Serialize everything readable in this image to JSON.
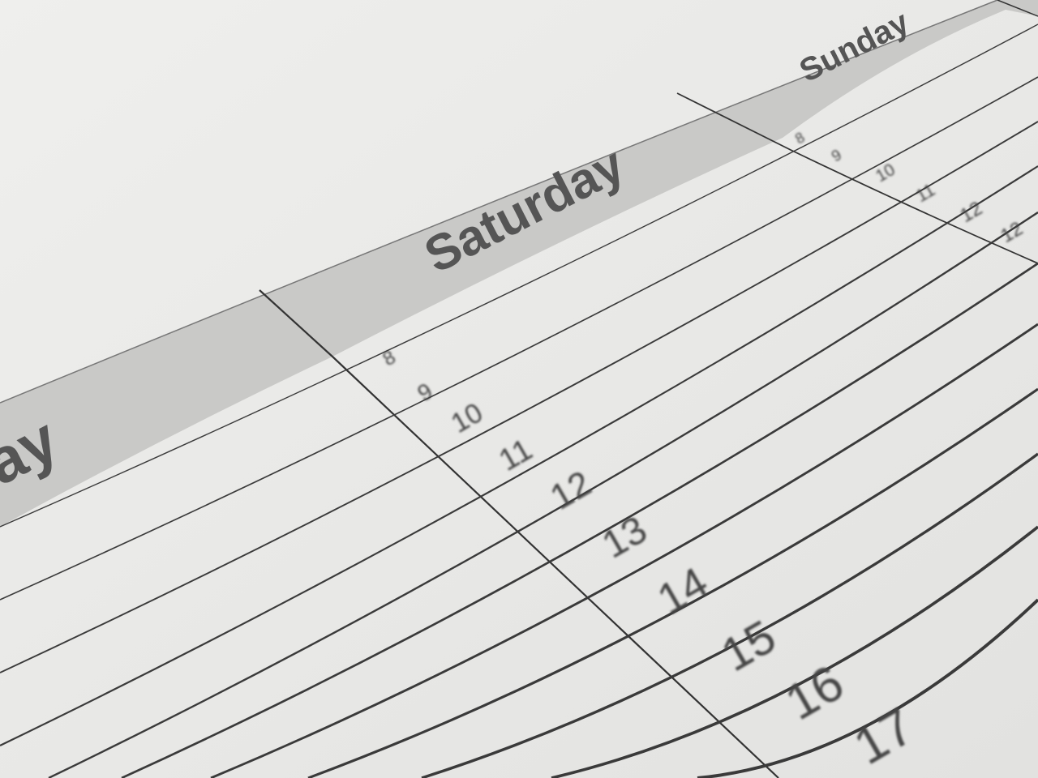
{
  "planner": {
    "days": [
      {
        "label": "ay"
      },
      {
        "label": "Saturday"
      },
      {
        "label": "Sunday"
      }
    ],
    "saturday_hours": [
      "8",
      "9",
      "10",
      "11",
      "12",
      "13",
      "14",
      "15",
      "16",
      "17"
    ],
    "sunday_hours": [
      "8",
      "9",
      "10",
      "11",
      "12",
      "12"
    ]
  },
  "colors": {
    "paper": "#ececea",
    "header_band": "#c9c9c7",
    "lines": "#3a3a3a",
    "text": "#555555"
  }
}
